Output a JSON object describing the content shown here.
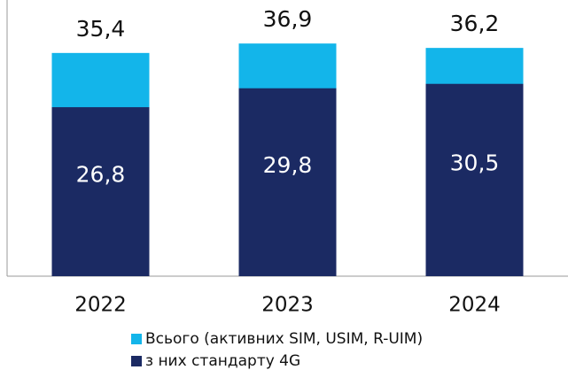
{
  "chart_data": {
    "type": "bar",
    "categories": [
      "2022",
      "2023",
      "2024"
    ],
    "series": [
      {
        "name": "Всього (активних SIM, USIM, R-UIM)",
        "color": "#13b5ea",
        "values": [
          35.4,
          36.9,
          36.2
        ],
        "value_labels": [
          "35,4",
          "36,9",
          "36,2"
        ]
      },
      {
        "name": "з них стандарту 4G",
        "color": "#1b2a63",
        "values": [
          26.8,
          29.8,
          30.5
        ],
        "value_labels": [
          "26,8",
          "29,8",
          "30,5"
        ]
      }
    ],
    "ylim": [
      0,
      43.8
    ]
  }
}
